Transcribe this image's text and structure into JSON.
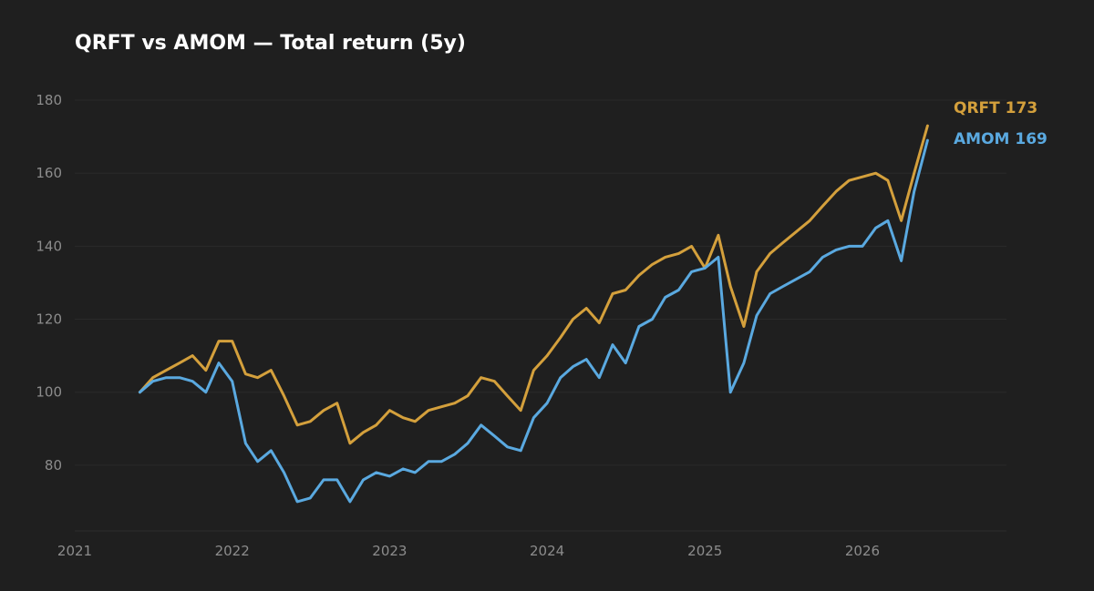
{
  "chart_data": {
    "type": "line",
    "title": "QRFT vs AMOM — Total return (5y)",
    "xlabel": "",
    "ylabel": "",
    "x_ticks": [
      "2021",
      "2022",
      "2023",
      "2024",
      "2025",
      "2026"
    ],
    "y_ticks": [
      80,
      100,
      120,
      140,
      160,
      180
    ],
    "xlim": [
      "2021-01-01",
      "2026-12-01"
    ],
    "ylim": [
      62,
      185
    ],
    "grid": true,
    "legend": "end-of-line labels, right",
    "x": [
      "2021-06",
      "2021-07",
      "2021-08",
      "2021-09",
      "2021-10",
      "2021-11",
      "2021-12",
      "2022-01",
      "2022-02",
      "2022-03",
      "2022-04",
      "2022-05",
      "2022-06",
      "2022-07",
      "2022-08",
      "2022-09",
      "2022-10",
      "2022-11",
      "2022-12",
      "2023-01",
      "2023-02",
      "2023-03",
      "2023-04",
      "2023-05",
      "2023-06",
      "2023-07",
      "2023-08",
      "2023-09",
      "2023-10",
      "2023-11",
      "2023-12",
      "2024-01",
      "2024-02",
      "2024-03",
      "2024-04",
      "2024-05",
      "2024-06",
      "2024-07",
      "2024-08",
      "2024-09",
      "2024-10",
      "2024-11",
      "2024-12",
      "2025-01",
      "2025-02",
      "2025-03",
      "2025-04",
      "2025-05",
      "2025-06",
      "2025-07",
      "2025-08",
      "2025-09",
      "2025-10",
      "2025-11",
      "2025-12",
      "2026-01",
      "2026-02",
      "2026-03",
      "2026-04",
      "2026-05",
      "2026-06"
    ],
    "series": [
      {
        "name": "QRFT",
        "color": "#d4a03c",
        "end_label": "QRFT  173",
        "values": [
          100,
          104,
          106,
          108,
          110,
          106,
          114,
          114,
          105,
          104,
          106,
          99,
          91,
          92,
          95,
          97,
          86,
          89,
          91,
          95,
          93,
          92,
          95,
          96,
          97,
          99,
          104,
          103,
          99,
          95,
          106,
          110,
          115,
          120,
          123,
          119,
          127,
          128,
          132,
          135,
          137,
          138,
          140,
          134,
          143,
          129,
          118,
          133,
          138,
          141,
          144,
          147,
          151,
          155,
          158,
          159,
          160,
          158,
          147,
          160,
          173
        ]
      },
      {
        "name": "AMOM",
        "color": "#5aa9e0",
        "end_label": "AMOM  169",
        "values": [
          100,
          103,
          104,
          104,
          103,
          100,
          108,
          103,
          86,
          81,
          84,
          78,
          70,
          71,
          76,
          76,
          70,
          76,
          78,
          77,
          79,
          78,
          81,
          81,
          83,
          86,
          91,
          88,
          85,
          84,
          93,
          97,
          104,
          107,
          109,
          104,
          113,
          108,
          118,
          120,
          126,
          128,
          133,
          134,
          137,
          100,
          108,
          121,
          127,
          129,
          131,
          133,
          137,
          139,
          140,
          140,
          145,
          147,
          136,
          155,
          169
        ]
      }
    ]
  }
}
